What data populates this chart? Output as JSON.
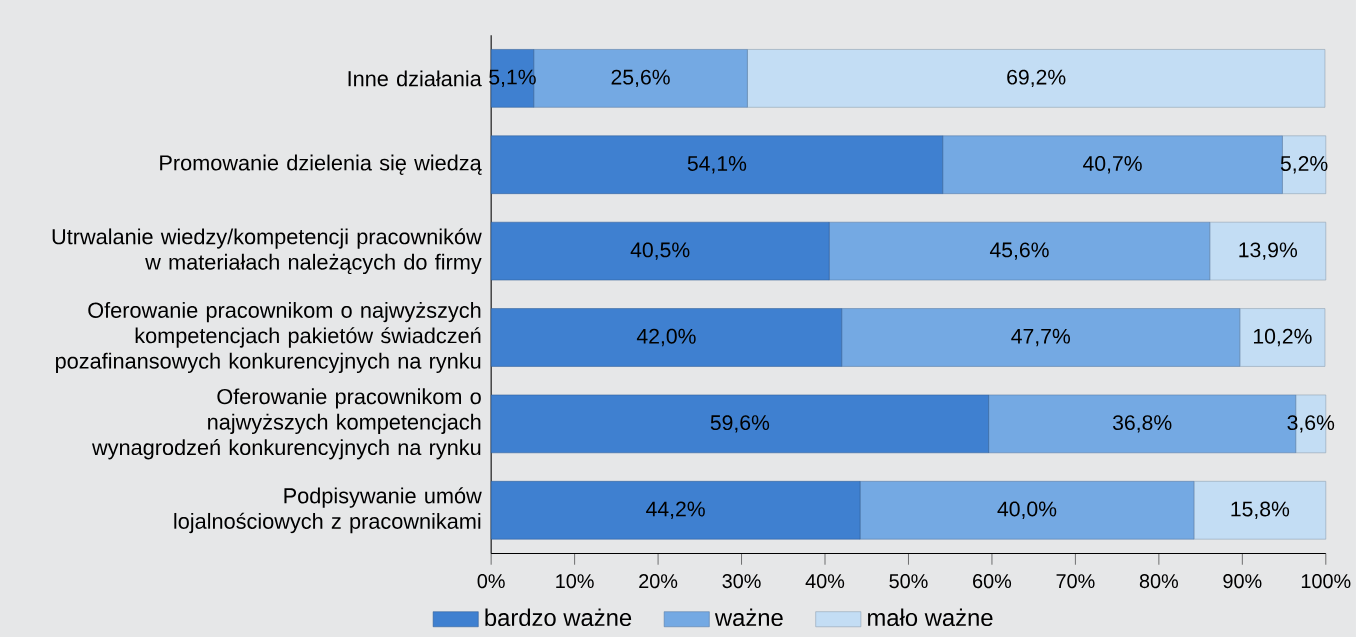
{
  "chart_data": {
    "type": "bar",
    "orientation": "horizontal",
    "stacked": true,
    "categories": [
      "Inne działania",
      "Promowanie dzielenia się wiedzą",
      "Utrwalanie wiedzy/kompetencji pracowników w materiałach należących do firmy",
      "Oferowanie pracownikom o najwyższych kompetencjach pakietów świadczeń pozafinansowych konkurencyjnych na rynku",
      "Oferowanie pracownikom o najwyższych kompetencjach wynagrodzeń konkurencyjnych na rynku",
      "Podpisywanie umów lojalnościowych z pracownikami"
    ],
    "series": [
      {
        "name": "bardzo ważne",
        "color": "#3f80d0",
        "values": [
          5.1,
          54.1,
          40.5,
          42.0,
          59.6,
          44.2
        ],
        "value_labels": [
          "5,1%",
          "54,1%",
          "40,5%",
          "42,0%",
          "59,6%",
          "44,2%"
        ]
      },
      {
        "name": "ważne",
        "color": "#74a9e3",
        "values": [
          25.6,
          40.7,
          45.6,
          47.7,
          36.8,
          40.0
        ],
        "value_labels": [
          "25,6%",
          "40,7%",
          "45,6%",
          "47,7%",
          "36,8%",
          "40,0%"
        ]
      },
      {
        "name": "mało ważne",
        "color": "#c3ddf4",
        "values": [
          69.2,
          5.2,
          13.9,
          10.2,
          3.6,
          15.8
        ],
        "value_labels": [
          "69,2%",
          "5,2%",
          "13,9%",
          "10,2%",
          "3,6%",
          "15,8%"
        ]
      }
    ],
    "xlim": [
      0,
      100
    ],
    "xticks": [
      {
        "value": 0,
        "label": "0%"
      },
      {
        "value": 10,
        "label": "10%"
      },
      {
        "value": 20,
        "label": "20%"
      },
      {
        "value": 30,
        "label": "30%"
      },
      {
        "value": 40,
        "label": "40%"
      },
      {
        "value": 50,
        "label": "50%"
      },
      {
        "value": 60,
        "label": "60%"
      },
      {
        "value": 70,
        "label": "70%"
      },
      {
        "value": 80,
        "label": "80%"
      },
      {
        "value": 90,
        "label": "90%"
      },
      {
        "value": 100,
        "label": "100%"
      }
    ],
    "grid": false,
    "legend": "bottom"
  }
}
